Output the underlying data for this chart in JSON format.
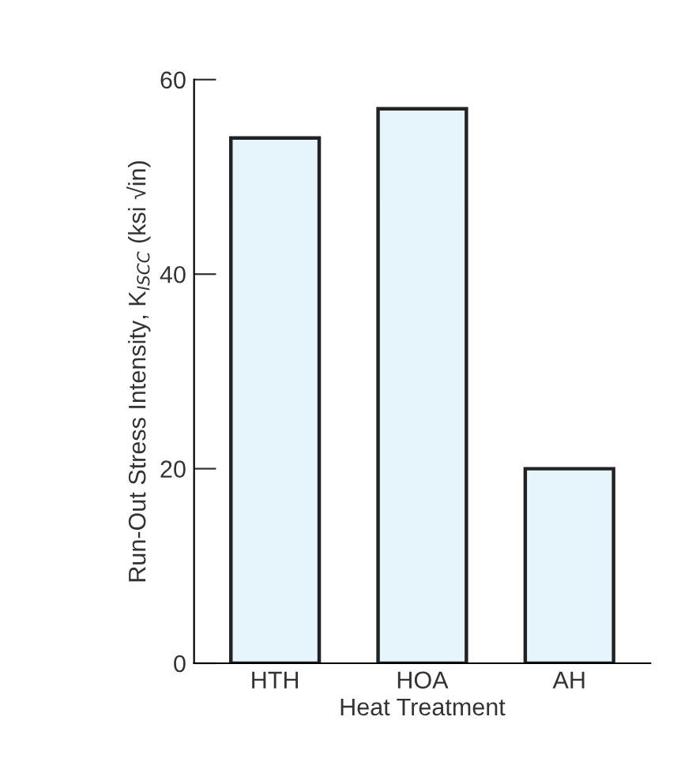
{
  "chart_data": {
    "type": "bar",
    "xlabel": "Heat Treatment",
    "ylabel": "Run-Out Stress Intensity, K$_{ISCC}$ (ksi √in)",
    "categories": [
      "HTH",
      "HOA",
      "AH"
    ],
    "values": [
      54,
      57,
      20
    ],
    "color": "#e6f4fc",
    "ylim": [
      0,
      60
    ],
    "yticks": [
      0,
      20,
      40,
      60
    ],
    "grid": false
  }
}
